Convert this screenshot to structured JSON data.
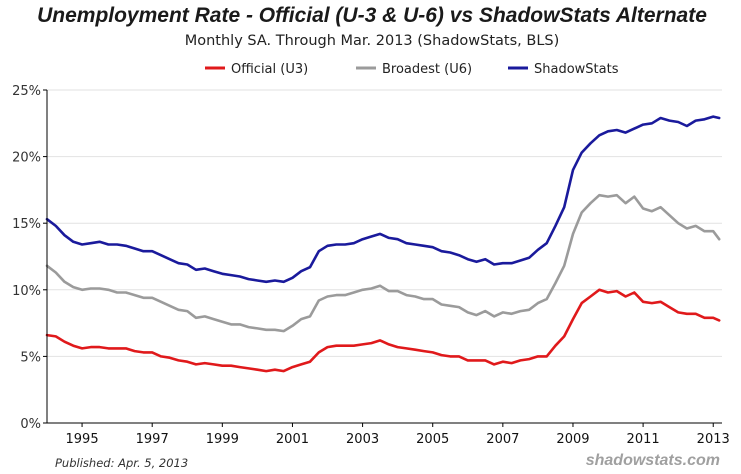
{
  "colors": {
    "u3": "#e0191b",
    "u6": "#9b9b9b",
    "shadow": "#1a1a9c"
  },
  "footer": {
    "published": "Published: Apr. 5, 2013",
    "brand": "shadowstats.com"
  },
  "chart_data": {
    "type": "line",
    "title": "Unemployment Rate - Official (U-3 & U-6) vs ShadowStats Alternate",
    "subtitle": "Monthly SA. Through Mar. 2013  (ShadowStats, BLS)",
    "xlabel": "",
    "ylabel": "",
    "xlim": [
      1994.0,
      2013.25
    ],
    "ylim": [
      0,
      25
    ],
    "yticks": [
      0,
      5,
      10,
      15,
      20,
      25
    ],
    "ytick_labels": [
      "0%",
      "5%",
      "10%",
      "15%",
      "20%",
      "25%"
    ],
    "xticks": [
      1995,
      1997,
      1999,
      2001,
      2003,
      2005,
      2007,
      2009,
      2011,
      2013
    ],
    "xtick_labels": [
      "1995",
      "1997",
      "1999",
      "2001",
      "2003",
      "2005",
      "2007",
      "2009",
      "2011",
      "2013"
    ],
    "grid": true,
    "legend_position": "top-center",
    "series": [
      {
        "name": "Official (U3)",
        "key": "u3",
        "points": [
          [
            1994.0,
            6.6
          ],
          [
            1994.25,
            6.5
          ],
          [
            1994.5,
            6.1
          ],
          [
            1994.75,
            5.8
          ],
          [
            1995.0,
            5.6
          ],
          [
            1995.25,
            5.7
          ],
          [
            1995.5,
            5.7
          ],
          [
            1995.75,
            5.6
          ],
          [
            1996.0,
            5.6
          ],
          [
            1996.25,
            5.6
          ],
          [
            1996.5,
            5.4
          ],
          [
            1996.75,
            5.3
          ],
          [
            1997.0,
            5.3
          ],
          [
            1997.25,
            5.0
          ],
          [
            1997.5,
            4.9
          ],
          [
            1997.75,
            4.7
          ],
          [
            1998.0,
            4.6
          ],
          [
            1998.25,
            4.4
          ],
          [
            1998.5,
            4.5
          ],
          [
            1998.75,
            4.4
          ],
          [
            1999.0,
            4.3
          ],
          [
            1999.25,
            4.3
          ],
          [
            1999.5,
            4.2
          ],
          [
            1999.75,
            4.1
          ],
          [
            2000.0,
            4.0
          ],
          [
            2000.25,
            3.9
          ],
          [
            2000.5,
            4.0
          ],
          [
            2000.75,
            3.9
          ],
          [
            2001.0,
            4.2
          ],
          [
            2001.25,
            4.4
          ],
          [
            2001.5,
            4.6
          ],
          [
            2001.75,
            5.3
          ],
          [
            2002.0,
            5.7
          ],
          [
            2002.25,
            5.8
          ],
          [
            2002.5,
            5.8
          ],
          [
            2002.75,
            5.8
          ],
          [
            2003.0,
            5.9
          ],
          [
            2003.25,
            6.0
          ],
          [
            2003.5,
            6.2
          ],
          [
            2003.75,
            5.9
          ],
          [
            2004.0,
            5.7
          ],
          [
            2004.25,
            5.6
          ],
          [
            2004.5,
            5.5
          ],
          [
            2004.75,
            5.4
          ],
          [
            2005.0,
            5.3
          ],
          [
            2005.25,
            5.1
          ],
          [
            2005.5,
            5.0
          ],
          [
            2005.75,
            5.0
          ],
          [
            2006.0,
            4.7
          ],
          [
            2006.25,
            4.7
          ],
          [
            2006.5,
            4.7
          ],
          [
            2006.75,
            4.4
          ],
          [
            2007.0,
            4.6
          ],
          [
            2007.25,
            4.5
          ],
          [
            2007.5,
            4.7
          ],
          [
            2007.75,
            4.8
          ],
          [
            2008.0,
            5.0
          ],
          [
            2008.25,
            5.0
          ],
          [
            2008.5,
            5.8
          ],
          [
            2008.75,
            6.5
          ],
          [
            2009.0,
            7.8
          ],
          [
            2009.25,
            9.0
          ],
          [
            2009.5,
            9.5
          ],
          [
            2009.75,
            10.0
          ],
          [
            2010.0,
            9.8
          ],
          [
            2010.25,
            9.9
          ],
          [
            2010.5,
            9.5
          ],
          [
            2010.75,
            9.8
          ],
          [
            2011.0,
            9.1
          ],
          [
            2011.25,
            9.0
          ],
          [
            2011.5,
            9.1
          ],
          [
            2011.75,
            8.7
          ],
          [
            2012.0,
            8.3
          ],
          [
            2012.25,
            8.2
          ],
          [
            2012.5,
            8.2
          ],
          [
            2012.75,
            7.9
          ],
          [
            2013.0,
            7.9
          ],
          [
            2013.17,
            7.7
          ]
        ]
      },
      {
        "name": "Broadest (U6)",
        "key": "u6",
        "points": [
          [
            1994.0,
            11.8
          ],
          [
            1994.25,
            11.3
          ],
          [
            1994.5,
            10.6
          ],
          [
            1994.75,
            10.2
          ],
          [
            1995.0,
            10.0
          ],
          [
            1995.25,
            10.1
          ],
          [
            1995.5,
            10.1
          ],
          [
            1995.75,
            10.0
          ],
          [
            1996.0,
            9.8
          ],
          [
            1996.25,
            9.8
          ],
          [
            1996.5,
            9.6
          ],
          [
            1996.75,
            9.4
          ],
          [
            1997.0,
            9.4
          ],
          [
            1997.25,
            9.1
          ],
          [
            1997.5,
            8.8
          ],
          [
            1997.75,
            8.5
          ],
          [
            1998.0,
            8.4
          ],
          [
            1998.25,
            7.9
          ],
          [
            1998.5,
            8.0
          ],
          [
            1998.75,
            7.8
          ],
          [
            1999.0,
            7.6
          ],
          [
            1999.25,
            7.4
          ],
          [
            1999.5,
            7.4
          ],
          [
            1999.75,
            7.2
          ],
          [
            2000.0,
            7.1
          ],
          [
            2000.25,
            7.0
          ],
          [
            2000.5,
            7.0
          ],
          [
            2000.75,
            6.9
          ],
          [
            2001.0,
            7.3
          ],
          [
            2001.25,
            7.8
          ],
          [
            2001.5,
            8.0
          ],
          [
            2001.75,
            9.2
          ],
          [
            2002.0,
            9.5
          ],
          [
            2002.25,
            9.6
          ],
          [
            2002.5,
            9.6
          ],
          [
            2002.75,
            9.8
          ],
          [
            2003.0,
            10.0
          ],
          [
            2003.25,
            10.1
          ],
          [
            2003.5,
            10.3
          ],
          [
            2003.75,
            9.9
          ],
          [
            2004.0,
            9.9
          ],
          [
            2004.25,
            9.6
          ],
          [
            2004.5,
            9.5
          ],
          [
            2004.75,
            9.3
          ],
          [
            2005.0,
            9.3
          ],
          [
            2005.25,
            8.9
          ],
          [
            2005.5,
            8.8
          ],
          [
            2005.75,
            8.7
          ],
          [
            2006.0,
            8.3
          ],
          [
            2006.25,
            8.1
          ],
          [
            2006.5,
            8.4
          ],
          [
            2006.75,
            8.0
          ],
          [
            2007.0,
            8.3
          ],
          [
            2007.25,
            8.2
          ],
          [
            2007.5,
            8.4
          ],
          [
            2007.75,
            8.5
          ],
          [
            2008.0,
            9.0
          ],
          [
            2008.25,
            9.3
          ],
          [
            2008.5,
            10.5
          ],
          [
            2008.75,
            11.8
          ],
          [
            2009.0,
            14.2
          ],
          [
            2009.25,
            15.8
          ],
          [
            2009.5,
            16.5
          ],
          [
            2009.75,
            17.1
          ],
          [
            2010.0,
            17.0
          ],
          [
            2010.25,
            17.1
          ],
          [
            2010.5,
            16.5
          ],
          [
            2010.75,
            17.0
          ],
          [
            2011.0,
            16.1
          ],
          [
            2011.25,
            15.9
          ],
          [
            2011.5,
            16.2
          ],
          [
            2011.75,
            15.6
          ],
          [
            2012.0,
            15.0
          ],
          [
            2012.25,
            14.6
          ],
          [
            2012.5,
            14.8
          ],
          [
            2012.75,
            14.4
          ],
          [
            2013.0,
            14.4
          ],
          [
            2013.17,
            13.8
          ]
        ]
      },
      {
        "name": "ShadowStats",
        "key": "shadow",
        "points": [
          [
            1994.0,
            15.3
          ],
          [
            1994.25,
            14.8
          ],
          [
            1994.5,
            14.1
          ],
          [
            1994.75,
            13.6
          ],
          [
            1995.0,
            13.4
          ],
          [
            1995.25,
            13.5
          ],
          [
            1995.5,
            13.6
          ],
          [
            1995.75,
            13.4
          ],
          [
            1996.0,
            13.4
          ],
          [
            1996.25,
            13.3
          ],
          [
            1996.5,
            13.1
          ],
          [
            1996.75,
            12.9
          ],
          [
            1997.0,
            12.9
          ],
          [
            1997.25,
            12.6
          ],
          [
            1997.5,
            12.3
          ],
          [
            1997.75,
            12.0
          ],
          [
            1998.0,
            11.9
          ],
          [
            1998.25,
            11.5
          ],
          [
            1998.5,
            11.6
          ],
          [
            1998.75,
            11.4
          ],
          [
            1999.0,
            11.2
          ],
          [
            1999.25,
            11.1
          ],
          [
            1999.5,
            11.0
          ],
          [
            1999.75,
            10.8
          ],
          [
            2000.0,
            10.7
          ],
          [
            2000.25,
            10.6
          ],
          [
            2000.5,
            10.7
          ],
          [
            2000.75,
            10.6
          ],
          [
            2001.0,
            10.9
          ],
          [
            2001.25,
            11.4
          ],
          [
            2001.5,
            11.7
          ],
          [
            2001.75,
            12.9
          ],
          [
            2002.0,
            13.3
          ],
          [
            2002.25,
            13.4
          ],
          [
            2002.5,
            13.4
          ],
          [
            2002.75,
            13.5
          ],
          [
            2003.0,
            13.8
          ],
          [
            2003.25,
            14.0
          ],
          [
            2003.5,
            14.2
          ],
          [
            2003.75,
            13.9
          ],
          [
            2004.0,
            13.8
          ],
          [
            2004.25,
            13.5
          ],
          [
            2004.5,
            13.4
          ],
          [
            2004.75,
            13.3
          ],
          [
            2005.0,
            13.2
          ],
          [
            2005.25,
            12.9
          ],
          [
            2005.5,
            12.8
          ],
          [
            2005.75,
            12.6
          ],
          [
            2006.0,
            12.3
          ],
          [
            2006.25,
            12.1
          ],
          [
            2006.5,
            12.3
          ],
          [
            2006.75,
            11.9
          ],
          [
            2007.0,
            12.0
          ],
          [
            2007.25,
            12.0
          ],
          [
            2007.5,
            12.2
          ],
          [
            2007.75,
            12.4
          ],
          [
            2008.0,
            13.0
          ],
          [
            2008.25,
            13.5
          ],
          [
            2008.5,
            14.8
          ],
          [
            2008.75,
            16.2
          ],
          [
            2009.0,
            19.0
          ],
          [
            2009.25,
            20.3
          ],
          [
            2009.5,
            21.0
          ],
          [
            2009.75,
            21.6
          ],
          [
            2010.0,
            21.9
          ],
          [
            2010.25,
            22.0
          ],
          [
            2010.5,
            21.8
          ],
          [
            2010.75,
            22.1
          ],
          [
            2011.0,
            22.4
          ],
          [
            2011.25,
            22.5
          ],
          [
            2011.5,
            22.9
          ],
          [
            2011.75,
            22.7
          ],
          [
            2012.0,
            22.6
          ],
          [
            2012.25,
            22.3
          ],
          [
            2012.5,
            22.7
          ],
          [
            2012.75,
            22.8
          ],
          [
            2013.0,
            23.0
          ],
          [
            2013.17,
            22.9
          ]
        ]
      }
    ]
  }
}
